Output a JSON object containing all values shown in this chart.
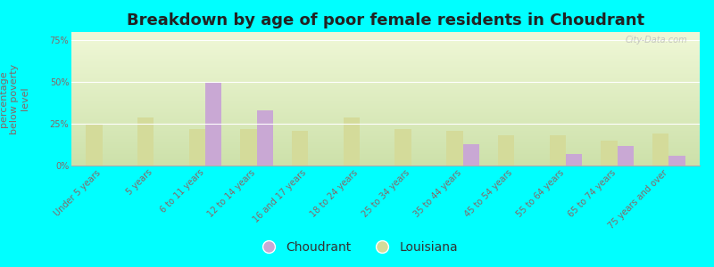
{
  "title": "Breakdown by age of poor female residents in Choudrant",
  "ylabel": "percentage\nbelow poverty\nlevel",
  "categories": [
    "Under 5 years",
    "5 years",
    "6 to 11 years",
    "12 to 14 years",
    "16 and 17 years",
    "18 to 24 years",
    "25 to 34 years",
    "35 to 44 years",
    "45 to 54 years",
    "55 to 64 years",
    "65 to 74 years",
    "75 years and over"
  ],
  "choudrant": [
    null,
    null,
    50,
    33,
    null,
    null,
    null,
    13,
    null,
    7,
    12,
    6
  ],
  "louisiana": [
    25,
    29,
    22,
    22,
    21,
    29,
    22,
    21,
    18,
    18,
    15,
    19
  ],
  "choudrant_color": "#c9a8d4",
  "louisiana_color": "#d4db9a",
  "bg_color": "#00ffff",
  "ylim": [
    0,
    80
  ],
  "yticks": [
    0,
    25,
    50,
    75
  ],
  "ytick_labels": [
    "0%",
    "25%",
    "50%",
    "75%"
  ],
  "bar_width": 0.32,
  "title_fontsize": 13,
  "axis_fontsize": 8,
  "tick_fontsize": 7,
  "legend_fontsize": 10,
  "text_color": "#886666"
}
